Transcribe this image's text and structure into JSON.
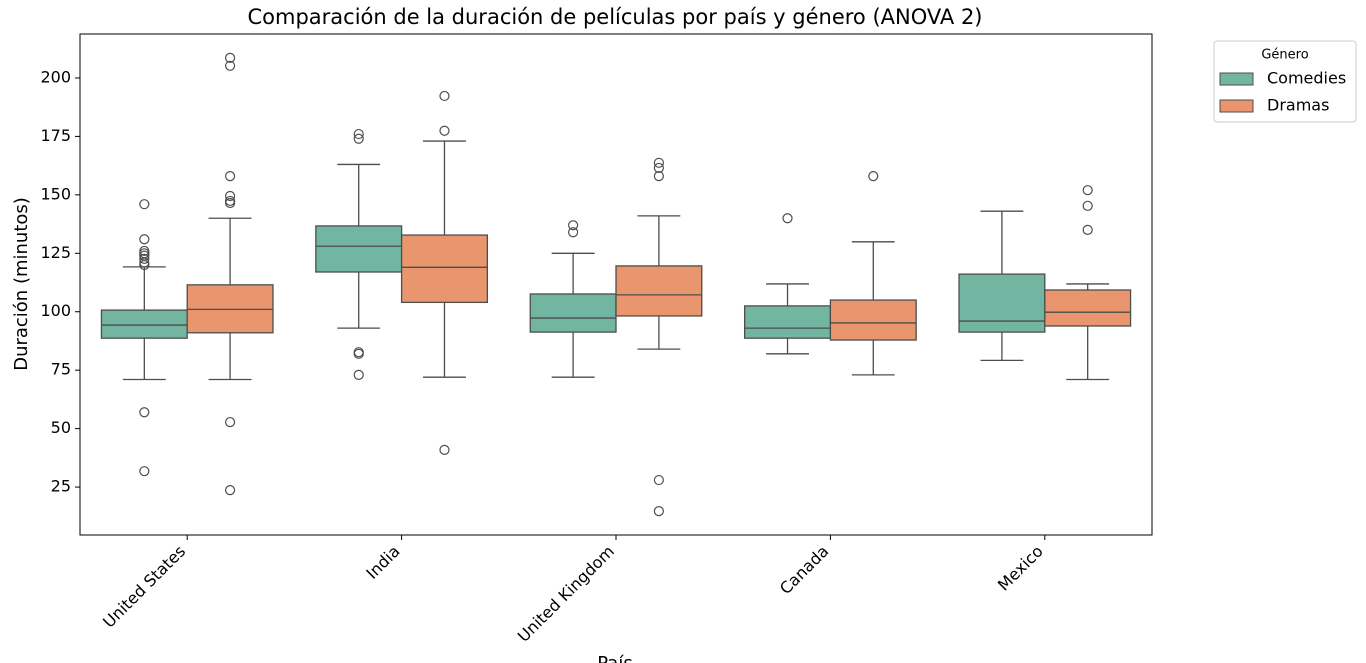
{
  "chart_data": {
    "type": "box",
    "title": "Comparación de la duración de películas por país y género (ANOVA 2)",
    "x_label": "País",
    "y_label": "Duración (minutos)",
    "categories": [
      "United States",
      "India",
      "United Kingdom",
      "Canada",
      "Mexico"
    ],
    "legend_title": "Género",
    "legend_position": "outside-upper-right",
    "ylim": [
      4.5,
      218.8
    ],
    "yticks": [
      25,
      50,
      75,
      100,
      125,
      150,
      175,
      200
    ],
    "series": [
      {
        "name": "Comedies",
        "color": "#72b6a1",
        "boxes": [
          {
            "low": 71,
            "q1": 88.7,
            "median": 94.3,
            "q3": 100.7,
            "high": 119.2,
            "outliers": [
              146,
              131,
              126,
              125,
              124,
              122.6,
              121,
              120,
              57,
              31.8
            ]
          },
          {
            "low": 93,
            "q1": 117,
            "median": 128,
            "q3": 136.7,
            "high": 163,
            "outliers": [
              176,
              174,
              82.7,
              82,
              73
            ]
          },
          {
            "low": 72,
            "q1": 91.3,
            "median": 97.3,
            "q3": 107.6,
            "high": 125,
            "outliers": [
              137,
              134
            ]
          },
          {
            "low": 82,
            "q1": 88.7,
            "median": 93,
            "q3": 102.5,
            "high": 111.9,
            "outliers": [
              140
            ]
          },
          {
            "low": 79.2,
            "q1": 91.3,
            "median": 96,
            "q3": 116.1,
            "high": 143,
            "outliers": []
          }
        ]
      },
      {
        "name": "Dramas",
        "color": "#e9966f",
        "boxes": [
          {
            "low": 71,
            "q1": 91,
            "median": 101,
            "q3": 111.5,
            "high": 140,
            "outliers": [
              208.6,
              205.2,
              158,
              149.5,
              147.4,
              146.5,
              52.8,
              23.7
            ]
          },
          {
            "low": 72,
            "q1": 104,
            "median": 119,
            "q3": 132.8,
            "high": 173,
            "outliers": [
              192.3,
              177.4,
              40.9
            ]
          },
          {
            "low": 84,
            "q1": 98.2,
            "median": 107.2,
            "q3": 119.6,
            "high": 141,
            "outliers": [
              163.7,
              161.5,
              158,
              28,
              14.7
            ]
          },
          {
            "low": 73,
            "q1": 87.9,
            "median": 95.2,
            "q3": 105,
            "high": 129.9,
            "outliers": [
              158
            ]
          },
          {
            "low": 71,
            "q1": 93.9,
            "median": 99.8,
            "q3": 109.3,
            "high": 111.9,
            "outliers": [
              152,
              145.3,
              135
            ]
          }
        ]
      }
    ]
  }
}
